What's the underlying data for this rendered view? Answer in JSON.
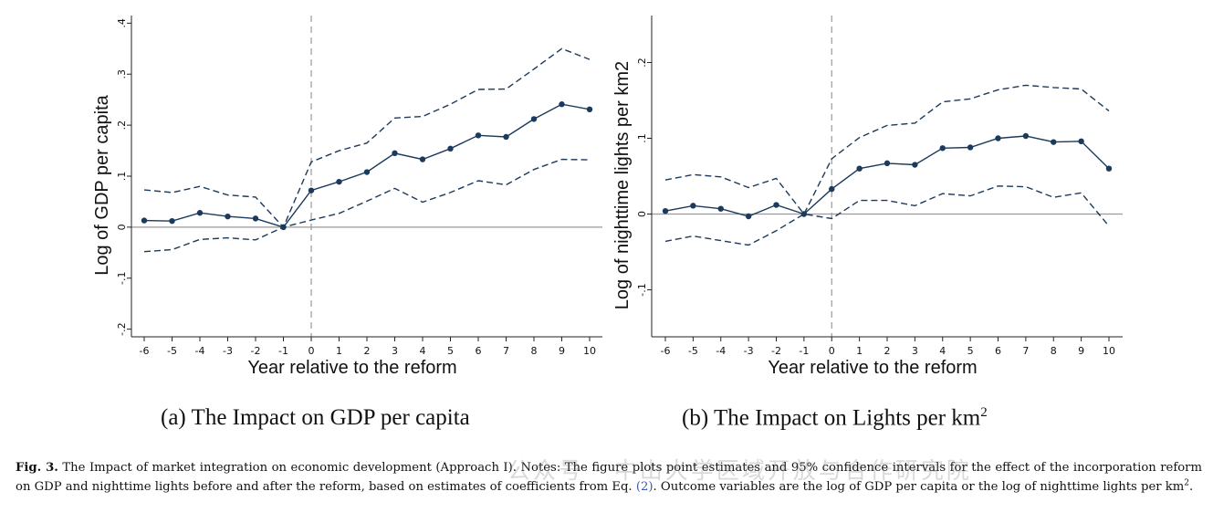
{
  "chart_data": [
    {
      "type": "line",
      "ylabel": "Log of GDP per capita",
      "xlabel": "Year relative to the reform",
      "x": [
        -6,
        -5,
        -4,
        -3,
        -2,
        -1,
        0,
        1,
        2,
        3,
        4,
        5,
        6,
        7,
        8,
        9,
        10
      ],
      "x_tick_labels": [
        "-6",
        "-5",
        "-4",
        "-3",
        "-2",
        "-1",
        "0",
        "1",
        "2",
        "3",
        "4",
        "5",
        "6",
        "7",
        "8",
        "9",
        "10"
      ],
      "y_ticks": [
        -0.2,
        -0.1,
        0,
        0.1,
        0.2,
        0.3,
        0.4
      ],
      "y_tick_labels": [
        "-.2",
        "-.1",
        "0",
        ".1",
        ".2",
        ".3",
        ".4"
      ],
      "ylim": [
        -0.215,
        0.415
      ],
      "reference_line_x": 0,
      "reference_line_y": 0,
      "series": [
        {
          "role": "estimate",
          "style": "solid with markers",
          "values": [
            0.013,
            0.012,
            0.028,
            0.021,
            0.017,
            0.0,
            0.072,
            0.089,
            0.108,
            0.145,
            0.133,
            0.154,
            0.18,
            0.177,
            0.212,
            0.241,
            0.231
          ]
        },
        {
          "role": "upper_ci",
          "style": "dashed",
          "values": [
            0.073,
            0.068,
            0.08,
            0.063,
            0.059,
            0.0,
            0.128,
            0.15,
            0.165,
            0.214,
            0.217,
            0.241,
            0.27,
            0.271,
            0.31,
            0.35,
            0.329
          ]
        },
        {
          "role": "lower_ci",
          "style": "dashed",
          "values": [
            -0.048,
            -0.044,
            -0.024,
            -0.021,
            -0.025,
            0.0,
            0.014,
            0.027,
            0.051,
            0.076,
            0.049,
            0.068,
            0.091,
            0.083,
            0.113,
            0.133,
            0.132
          ]
        }
      ]
    },
    {
      "type": "line",
      "ylabel": "Log of nighttime lights per km2",
      "xlabel": "Year relative to the reform",
      "x": [
        -6,
        -5,
        -4,
        -3,
        -2,
        -1,
        0,
        1,
        2,
        3,
        4,
        5,
        6,
        7,
        8,
        9,
        10
      ],
      "x_tick_labels": [
        "-6",
        "-5",
        "-4",
        "-3",
        "-2",
        "-1",
        "0",
        "1",
        "2",
        "3",
        "4",
        "5",
        "6",
        "7",
        "8",
        "9",
        "10"
      ],
      "y_ticks": [
        -0.1,
        0,
        0.1,
        0.2
      ],
      "y_tick_labels": [
        "-.1",
        "0",
        ".1",
        ".2"
      ],
      "ylim": [
        -0.162,
        0.262
      ],
      "reference_line_x": 0,
      "reference_line_y": 0,
      "series": [
        {
          "role": "estimate",
          "style": "solid with markers",
          "values": [
            0.004,
            0.011,
            0.007,
            -0.003,
            0.012,
            0.0,
            0.033,
            0.06,
            0.067,
            0.065,
            0.087,
            0.088,
            0.1,
            0.103,
            0.095,
            0.096,
            0.06
          ]
        },
        {
          "role": "upper_ci",
          "style": "dashed",
          "values": [
            0.045,
            0.052,
            0.049,
            0.035,
            0.047,
            0.0,
            0.073,
            0.101,
            0.117,
            0.12,
            0.148,
            0.152,
            0.164,
            0.17,
            0.167,
            0.165,
            0.136
          ]
        },
        {
          "role": "lower_ci",
          "style": "dashed",
          "values": [
            -0.036,
            -0.029,
            -0.035,
            -0.041,
            -0.022,
            0.0,
            -0.006,
            0.018,
            0.018,
            0.011,
            0.027,
            0.024,
            0.037,
            0.036,
            0.022,
            0.028,
            -0.016
          ]
        }
      ]
    }
  ],
  "colors": {
    "series": "#1b3a5c",
    "reference_lines": "#9a9a9a",
    "axis": "#222222",
    "ref_link": "#3b5bb5"
  },
  "subcaptions": {
    "a": "(a) The Impact on GDP per capita",
    "b_prefix": "(b) The Impact on Lights per km",
    "b_sup": "2"
  },
  "caption": {
    "label": "Fig. 3.",
    "part1": "The Impact of market integration on economic development (Approach I). Notes: The figure plots point estimates and 95% confidence intervals for the effect of the incorporation reform on GDP and nighttime lights before and after the reform, based on estimates of coefficients from Eq.",
    "ref": "(2)",
    "part2": ". Outcome variables are the log of GDP per capita or the log of nighttime lights per km",
    "sup": "2",
    "end": "."
  },
  "watermark": "公众号 · 中山大学区域开放与合作研究院"
}
